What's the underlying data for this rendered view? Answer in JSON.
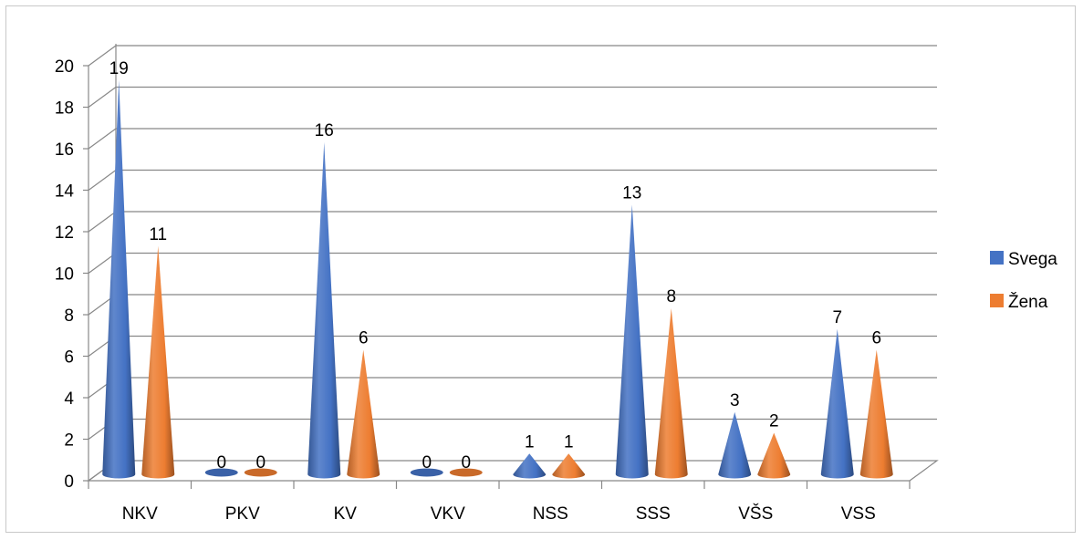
{
  "chart_data": {
    "type": "bar",
    "style": "3d-cone",
    "categories": [
      "NKV",
      "PKV",
      "KV",
      "VKV",
      "NSS",
      "SSS",
      "VŠS",
      "VSS"
    ],
    "series": [
      {
        "name": "Svega",
        "color": "#4472C4",
        "values": [
          19,
          0,
          16,
          0,
          1,
          13,
          3,
          7
        ]
      },
      {
        "name": "Žena",
        "color": "#ED7D31",
        "values": [
          11,
          0,
          6,
          0,
          1,
          8,
          2,
          6
        ]
      }
    ],
    "ylim": [
      0,
      20
    ],
    "yticks": [
      "0",
      "2",
      "4",
      "6",
      "8",
      "10",
      "12",
      "14",
      "16",
      "18",
      "20"
    ],
    "grid": true,
    "legend_position": "right",
    "data_labels": true
  }
}
